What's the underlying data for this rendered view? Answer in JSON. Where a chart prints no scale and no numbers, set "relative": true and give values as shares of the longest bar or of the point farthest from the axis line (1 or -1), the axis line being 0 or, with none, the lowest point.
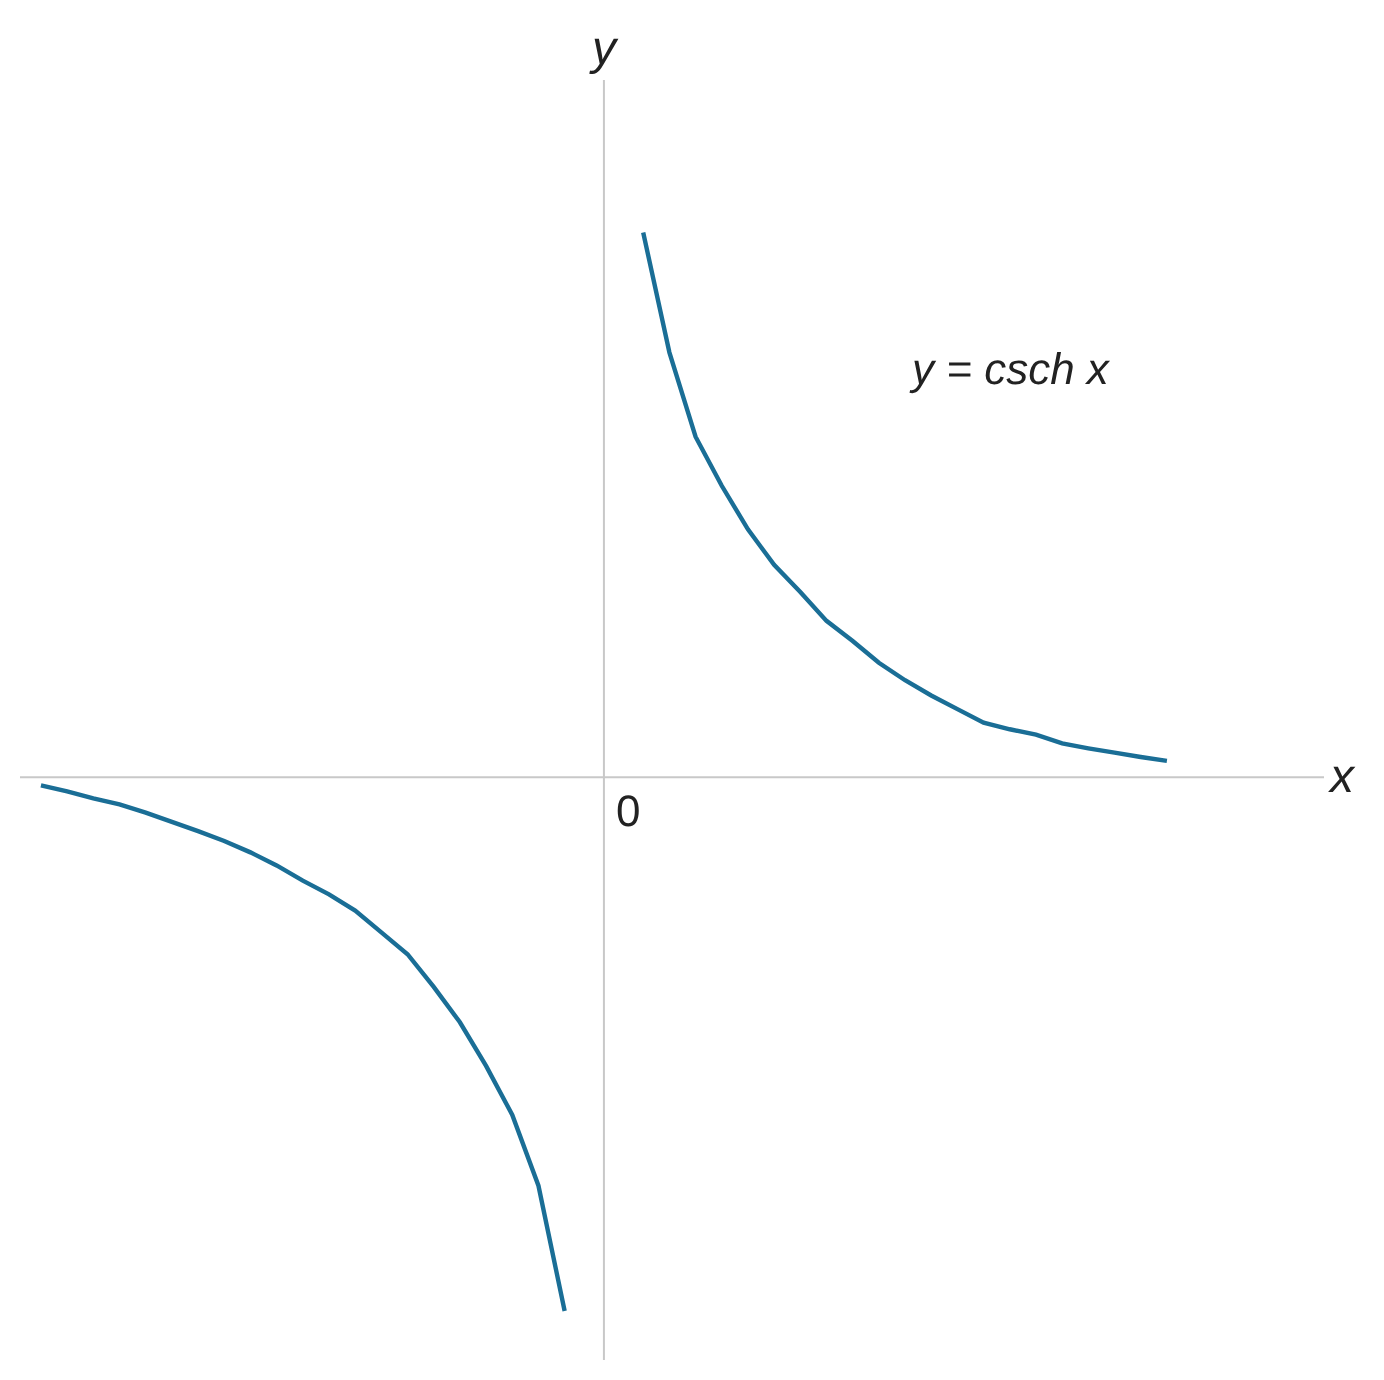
{
  "chart_data": {
    "type": "line",
    "relative": true,
    "xlabel": "x",
    "ylabel": "y",
    "annotations": [
      "0",
      "y = csch x"
    ],
    "categories": [
      null,
      null,
      null,
      null,
      null,
      null,
      null,
      null,
      null,
      null,
      null,
      null,
      null,
      null,
      null,
      null,
      null,
      null,
      null,
      null,
      null,
      null,
      null,
      null,
      null,
      null,
      null,
      null,
      null,
      null,
      null,
      null,
      null,
      null,
      null,
      null,
      null,
      null,
      null,
      null,
      null,
      null,
      null,
      null
    ],
    "series": [
      {
        "color": "#1a6e96",
        "values": [
          -0.015,
          -0.026,
          -0.039,
          -0.05,
          -0.065,
          -0.082,
          -0.099,
          -0.117,
          -0.138,
          -0.162,
          -0.19,
          -0.215,
          -0.245,
          -0.285,
          -0.325,
          -0.385,
          -0.45,
          -0.53,
          -0.62,
          -0.75,
          -0.98,
          null,
          null,
          null,
          null,
          null,
          null,
          null,
          null,
          null,
          null,
          null,
          null,
          null,
          null,
          null,
          null,
          null,
          null,
          null,
          null,
          null,
          null,
          null
        ]
      },
      {
        "color": "#1a6e96",
        "values": [
          null,
          null,
          null,
          null,
          null,
          null,
          null,
          null,
          null,
          null,
          null,
          null,
          null,
          null,
          null,
          null,
          null,
          null,
          null,
          null,
          null,
          null,
          null,
          1.0,
          0.78,
          0.625,
          0.535,
          0.455,
          0.39,
          0.34,
          0.287,
          0.25,
          0.21,
          0.178,
          0.15,
          0.125,
          0.1,
          0.088,
          0.078,
          0.062,
          0.053,
          0.045,
          0.037,
          0.03
        ]
      }
    ],
    "marker": "none",
    "line_style": "solid"
  }
}
